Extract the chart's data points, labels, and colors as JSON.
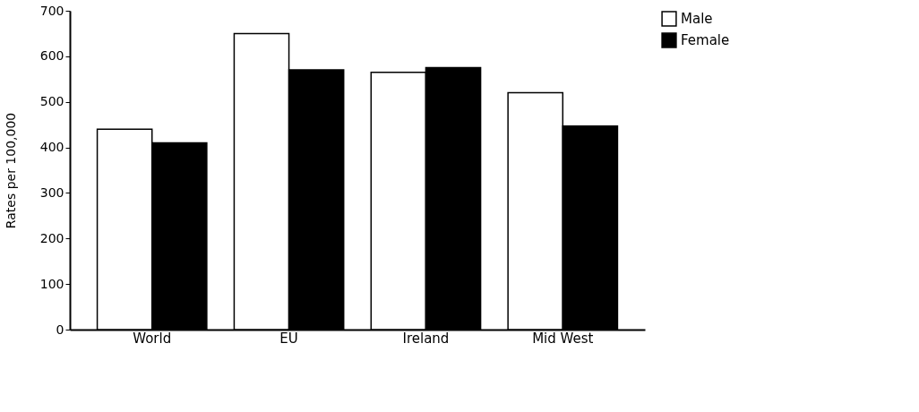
{
  "chart_data": {
    "type": "bar",
    "ylabel": "Rates per 100,000",
    "categories": [
      "World",
      "EU",
      "Ireland",
      "Mid West"
    ],
    "series": [
      {
        "name": "Male",
        "color": "#ffffff",
        "values": [
          440,
          650,
          565,
          520
        ]
      },
      {
        "name": "Female",
        "color": "#000000",
        "values": [
          410,
          570,
          575,
          447
        ]
      }
    ],
    "ylim": [
      0,
      700
    ],
    "yticks": [
      0,
      100,
      200,
      300,
      400,
      500,
      600,
      700
    ],
    "grid": false,
    "legend": "right"
  }
}
